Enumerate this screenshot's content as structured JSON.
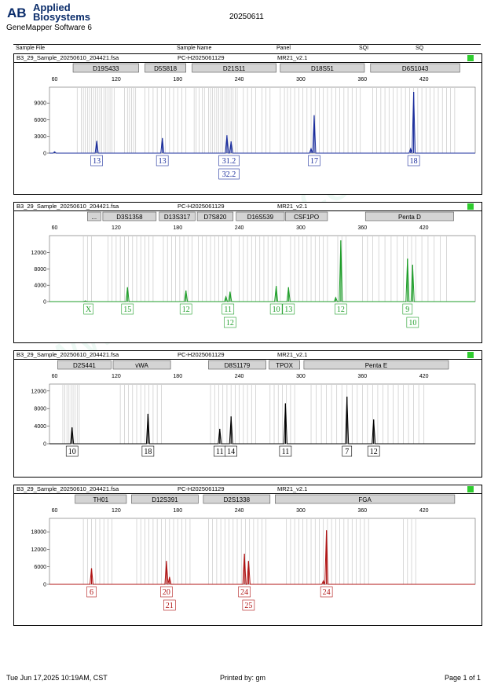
{
  "header": {
    "brand_line1": "Applied",
    "brand_line2": "Biosystems",
    "software": "GeneMapper Software 6",
    "date": "20250611",
    "logo_text": "AB"
  },
  "columns": [
    "Sample File",
    "Sample Name",
    "Panel",
    "SQI",
    "SQ"
  ],
  "footer": {
    "printed_on": "Tue Jun 17,2025 10:19AM, CST",
    "printed_by": "Printed by: gm",
    "page": "Page 1 of 1"
  },
  "watermark": "www.proteck.com.cn",
  "chart_data": [
    {
      "type": "electropherogram",
      "sample_file": "B3_29_Sample_20250610_204421.fsa",
      "sample_name": "PC-H2025061129",
      "panel": "MR21_v2.1",
      "sq_color": "#2ecc2e",
      "color": "#1a2d9c",
      "xlim": [
        55,
        470
      ],
      "xticks": [
        60,
        120,
        180,
        240,
        300,
        360,
        420
      ],
      "ylim": [
        0,
        11000
      ],
      "yticks": [
        0,
        3000,
        6000,
        9000
      ],
      "markers": [
        {
          "label": "D19S433",
          "start": 78,
          "end": 142
        },
        {
          "label": "D5S818",
          "start": 148,
          "end": 188
        },
        {
          "label": "D21S11",
          "start": 194,
          "end": 276
        },
        {
          "label": "D18S51",
          "start": 280,
          "end": 362
        },
        {
          "label": "D6S1043",
          "start": 368,
          "end": 455
        }
      ],
      "peaks": [
        {
          "x": 60,
          "h": 250
        },
        {
          "x": 101,
          "h": 2200
        },
        {
          "x": 165,
          "h": 2700
        },
        {
          "x": 228,
          "h": 3200
        },
        {
          "x": 232,
          "h": 2100
        },
        {
          "x": 310,
          "h": 800
        },
        {
          "x": 313,
          "h": 6800
        },
        {
          "x": 407,
          "h": 800
        },
        {
          "x": 410,
          "h": 11000
        }
      ],
      "alleles": [
        {
          "x": 101,
          "row": 1,
          "label": "13"
        },
        {
          "x": 165,
          "row": 1,
          "label": "13"
        },
        {
          "x": 230,
          "row": 1,
          "label": "31.2"
        },
        {
          "x": 230,
          "row": 2,
          "label": "32.2"
        },
        {
          "x": 313,
          "row": 1,
          "label": "17"
        },
        {
          "x": 410,
          "row": 1,
          "label": "18"
        }
      ],
      "bins": [
        82,
        86,
        88,
        90,
        92,
        94,
        96,
        98,
        100,
        102,
        104,
        106,
        108,
        110,
        112,
        114,
        116,
        118,
        128,
        131,
        133,
        135,
        137,
        139,
        148,
        152,
        156,
        160,
        164,
        168,
        172,
        176,
        180,
        184,
        188,
        196,
        198,
        201,
        204,
        206,
        210,
        212,
        214,
        216,
        218,
        220,
        222,
        224,
        226,
        228,
        230,
        232,
        234,
        236,
        238,
        244,
        248,
        252,
        256,
        262,
        266,
        270,
        280,
        284,
        287,
        290,
        294,
        298,
        302,
        306,
        310,
        314,
        318,
        322,
        326,
        330,
        334,
        338,
        342,
        346,
        350,
        354,
        358,
        370,
        374,
        378,
        382,
        386,
        390,
        394,
        398,
        402,
        406,
        410,
        414,
        418,
        422,
        426,
        430,
        434,
        438,
        442,
        446,
        450
      ]
    },
    {
      "type": "electropherogram",
      "sample_file": "B3_29_Sample_20250610_204421.fsa",
      "sample_name": "PC-H2025061129",
      "panel": "MR21_v2.1",
      "sq_color": "#2ecc2e",
      "color": "#1f9e2a",
      "xlim": [
        55,
        470
      ],
      "xticks": [
        60,
        120,
        180,
        240,
        300,
        360,
        420
      ],
      "ylim": [
        0,
        15000
      ],
      "yticks": [
        0,
        4000,
        8000,
        12000
      ],
      "markers": [
        {
          "label": "...",
          "start": 92,
          "end": 105
        },
        {
          "label": "D3S1358",
          "start": 107,
          "end": 159
        },
        {
          "label": "D13S317",
          "start": 162,
          "end": 197
        },
        {
          "label": "D7S820",
          "start": 199,
          "end": 234
        },
        {
          "label": "D16S539",
          "start": 237,
          "end": 284
        },
        {
          "label": "CSF1PO",
          "start": 285,
          "end": 326
        },
        {
          "label": "Penta D",
          "start": 363,
          "end": 449
        }
      ],
      "peaks": [
        {
          "x": 90,
          "h": 200
        },
        {
          "x": 131,
          "h": 3500
        },
        {
          "x": 188,
          "h": 2700
        },
        {
          "x": 227,
          "h": 1200
        },
        {
          "x": 231,
          "h": 2400
        },
        {
          "x": 276,
          "h": 3800
        },
        {
          "x": 288,
          "h": 3500
        },
        {
          "x": 334,
          "h": 1000
        },
        {
          "x": 339,
          "h": 15000
        },
        {
          "x": 404,
          "h": 10500
        },
        {
          "x": 409,
          "h": 9000
        }
      ],
      "alleles": [
        {
          "x": 93,
          "row": 1,
          "label": "X"
        },
        {
          "x": 131,
          "row": 1,
          "label": "15"
        },
        {
          "x": 188,
          "row": 1,
          "label": "12"
        },
        {
          "x": 229,
          "row": 1,
          "label": "11"
        },
        {
          "x": 231,
          "row": 2,
          "label": "12"
        },
        {
          "x": 276,
          "row": 1,
          "label": "10"
        },
        {
          "x": 288,
          "row": 1,
          "label": "13"
        },
        {
          "x": 339,
          "row": 1,
          "label": "12"
        },
        {
          "x": 404,
          "row": 1,
          "label": "9"
        },
        {
          "x": 409,
          "row": 2,
          "label": "10"
        }
      ],
      "bins": [
        88,
        92,
        96,
        112,
        116,
        120,
        124,
        128,
        132,
        136,
        140,
        144,
        148,
        152,
        156,
        166,
        170,
        174,
        178,
        182,
        186,
        190,
        194,
        200,
        204,
        208,
        212,
        216,
        220,
        224,
        228,
        232,
        240,
        244,
        248,
        252,
        256,
        260,
        264,
        268,
        272,
        276,
        280,
        290,
        294,
        298,
        302,
        306,
        310,
        314,
        318,
        322,
        326,
        336,
        340,
        344,
        360,
        365,
        370,
        376,
        382,
        388,
        394,
        400,
        404,
        408,
        412,
        418,
        424,
        430,
        436,
        442
      ]
    },
    {
      "type": "electropherogram",
      "sample_file": "B3_29_Sample_20250610_204421.fsa",
      "sample_name": "PC-H2025061129",
      "panel": "MR21_v2.1",
      "sq_color": "#2ecc2e",
      "color": "#000000",
      "xlim": [
        55,
        470
      ],
      "xticks": [
        60,
        120,
        180,
        240,
        300,
        360,
        420
      ],
      "ylim": [
        0,
        12500
      ],
      "yticks": [
        0,
        4000,
        8000,
        12000
      ],
      "markers": [
        {
          "label": "D2S441",
          "start": 63,
          "end": 115
        },
        {
          "label": "vWA",
          "start": 117,
          "end": 173
        },
        {
          "label": "D8S1179",
          "start": 210,
          "end": 266
        },
        {
          "label": "TPOX",
          "start": 269,
          "end": 299
        },
        {
          "label": "Penta E",
          "start": 303,
          "end": 444
        }
      ],
      "peaks": [
        {
          "x": 77,
          "h": 3700
        },
        {
          "x": 151,
          "h": 6800
        },
        {
          "x": 221,
          "h": 3400
        },
        {
          "x": 232,
          "h": 6200
        },
        {
          "x": 285,
          "h": 9200
        },
        {
          "x": 345,
          "h": 10700
        },
        {
          "x": 371,
          "h": 5500
        }
      ],
      "alleles": [
        {
          "x": 77,
          "row": 1,
          "label": "10"
        },
        {
          "x": 151,
          "row": 1,
          "label": "18"
        },
        {
          "x": 221,
          "row": 1,
          "label": "11"
        },
        {
          "x": 232,
          "row": 1,
          "label": "14"
        },
        {
          "x": 285,
          "row": 1,
          "label": "11"
        },
        {
          "x": 345,
          "row": 1,
          "label": "7"
        },
        {
          "x": 371,
          "row": 1,
          "label": "12"
        }
      ],
      "bins": [
        68,
        70,
        72,
        74,
        76,
        78,
        80,
        82,
        84,
        124,
        128,
        132,
        136,
        140,
        144,
        148,
        152,
        156,
        160,
        164,
        212,
        216,
        220,
        224,
        228,
        232,
        236,
        240,
        244,
        248,
        252,
        256,
        270,
        274,
        278,
        282,
        286,
        290,
        294,
        310,
        315,
        320,
        325,
        330,
        335,
        340,
        345,
        350,
        355,
        360,
        365,
        370,
        375,
        380,
        385,
        390,
        395,
        400,
        405,
        410,
        415,
        420
      ]
    },
    {
      "type": "electropherogram",
      "sample_file": "B3_29_Sample_20250610_204421.fsa",
      "sample_name": "PC-H2025061129",
      "panel": "MR21_v2.1",
      "sq_color": "#2ecc2e",
      "color": "#b01515",
      "xlim": [
        55,
        470
      ],
      "xticks": [
        60,
        120,
        180,
        240,
        300,
        360,
        420
      ],
      "ylim": [
        0,
        21000
      ],
      "yticks": [
        0,
        6000,
        12000,
        18000
      ],
      "markers": [
        {
          "label": "TH01",
          "start": 80,
          "end": 130
        },
        {
          "label": "D12S391",
          "start": 135,
          "end": 200
        },
        {
          "label": "D2S1338",
          "start": 205,
          "end": 270
        },
        {
          "label": "FGA",
          "start": 275,
          "end": 450
        }
      ],
      "peaks": [
        {
          "x": 96,
          "h": 5500
        },
        {
          "x": 169,
          "h": 8000
        },
        {
          "x": 172,
          "h": 2500
        },
        {
          "x": 245,
          "h": 10500
        },
        {
          "x": 249,
          "h": 8000
        },
        {
          "x": 322,
          "h": 1200
        },
        {
          "x": 325,
          "h": 18500
        }
      ],
      "alleles": [
        {
          "x": 96,
          "row": 1,
          "label": "6"
        },
        {
          "x": 169,
          "row": 1,
          "label": "20"
        },
        {
          "x": 172,
          "row": 2,
          "label": "21"
        },
        {
          "x": 245,
          "row": 1,
          "label": "24"
        },
        {
          "x": 249,
          "row": 2,
          "label": "25"
        },
        {
          "x": 325,
          "row": 1,
          "label": "24"
        }
      ],
      "bins": [
        88,
        92,
        96,
        100,
        104,
        108,
        112,
        116,
        140,
        144,
        148,
        152,
        156,
        160,
        164,
        168,
        172,
        176,
        180,
        184,
        188,
        192,
        210,
        214,
        218,
        222,
        226,
        230,
        234,
        238,
        242,
        246,
        250,
        254,
        258,
        262,
        266,
        286,
        290,
        294,
        298,
        302,
        306,
        310,
        314,
        318,
        322,
        326,
        330,
        334,
        338,
        342,
        346,
        350,
        354,
        358,
        362,
        366,
        400,
        404,
        408,
        412
      ]
    }
  ]
}
